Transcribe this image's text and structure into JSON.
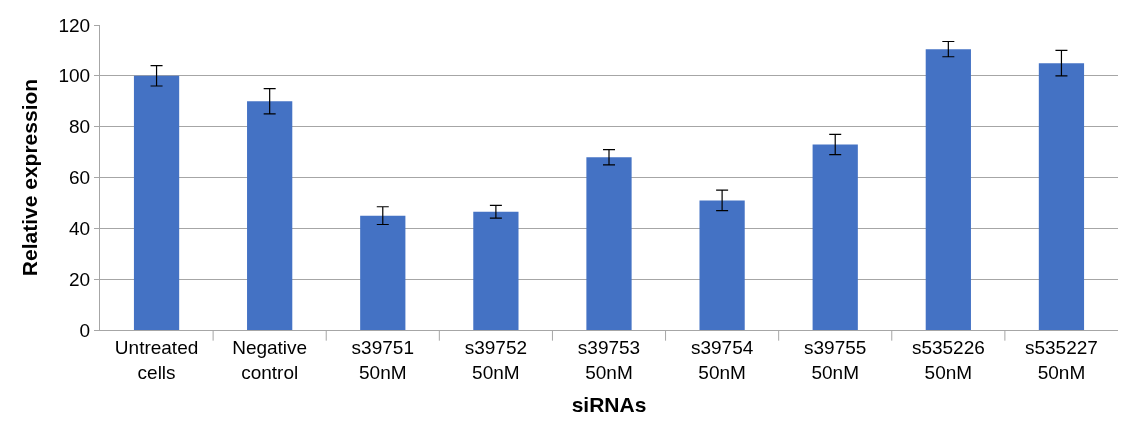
{
  "chart_data": {
    "type": "bar",
    "xlabel": "siRNAs",
    "ylabel": "Relative expression",
    "categories": [
      "Untreated\ncells",
      "Negative\ncontrol",
      "s39751\n50nM",
      "s39752\n50nM",
      "s39753\n50nM",
      "s39754\n50nM",
      "s39755\n50nM",
      "s535226\n50nM",
      "s535227\n50nM"
    ],
    "values": [
      100,
      90,
      45,
      46.5,
      68,
      51,
      73,
      110.5,
      105
    ],
    "errors": [
      4,
      5,
      3.5,
      2.5,
      3,
      4,
      4,
      3,
      5
    ],
    "color": "#4472c4",
    "ylim": [
      0,
      120
    ],
    "yticks": [
      0,
      20,
      40,
      60,
      80,
      100,
      120
    ],
    "grid": "y"
  }
}
